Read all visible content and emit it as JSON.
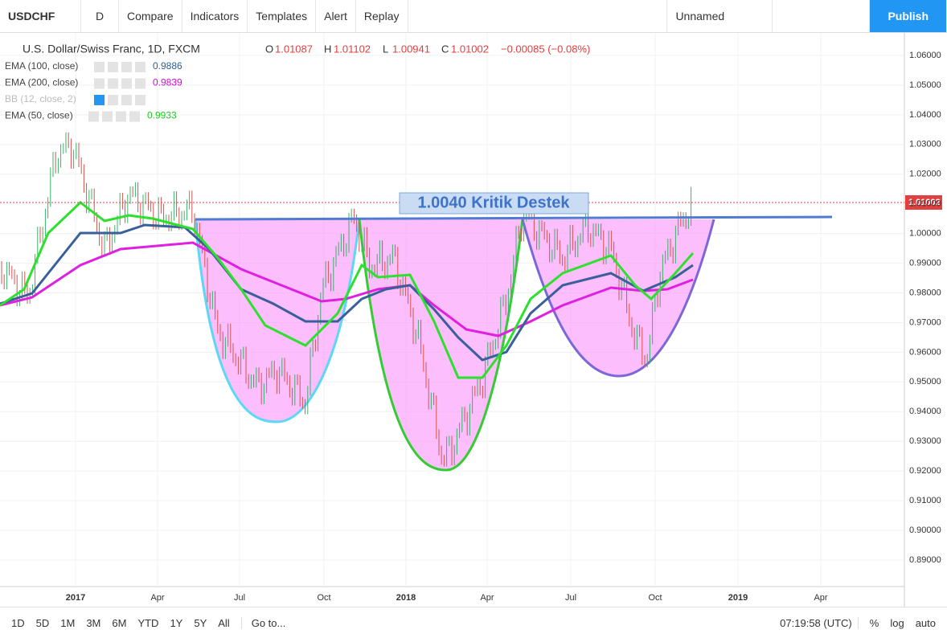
{
  "toolbar": {
    "symbol": "USDCHF",
    "interval": "D",
    "buttons": [
      "Compare",
      "Indicators",
      "Templates",
      "Alert",
      "Replay"
    ],
    "layout_name": "Unnamed",
    "publish": "Publish"
  },
  "legend": {
    "title": "U.S. Dollar/Swiss Franc, 1D, FXCM",
    "ohlc": [
      {
        "key": "O",
        "value": "1.01087"
      },
      {
        "key": "H",
        "value": "1.01102"
      },
      {
        "key": "L",
        "value": "1.00941"
      },
      {
        "key": "C",
        "value": "1.01002"
      }
    ],
    "change": "−0.00085 (−0.08%)",
    "indicators": [
      {
        "name": "EMA (100, close)",
        "value": "0.9886",
        "color": "#2a5f8f"
      },
      {
        "name": "EMA (200, close)",
        "value": "0.9839",
        "color": "#e000e0"
      },
      {
        "name": "BB (12, close, 2)",
        "value": null,
        "color": "#bbbbbb"
      },
      {
        "name": "EMA (50, close)",
        "value": "0.9933",
        "color": "#22cc22"
      }
    ]
  },
  "price_axis": {
    "ticks": [
      "1.06000",
      "1.05000",
      "1.04000",
      "1.03000",
      "1.02000",
      "1.01000",
      "1.00000",
      "0.99000",
      "0.98000",
      "0.97000",
      "0.96000",
      "0.95000",
      "0.94000",
      "0.93000",
      "0.92000",
      "0.91000",
      "0.90000",
      "0.89000"
    ],
    "last_price": "1.01002"
  },
  "time_axis": {
    "labels": [
      "2017",
      "Apr",
      "Jul",
      "Oct",
      "2018",
      "Apr",
      "Jul",
      "Oct",
      "2019",
      "Apr"
    ]
  },
  "annotation": "1.0040 Kritik Destek",
  "bottom_bar": {
    "ranges": [
      "1D",
      "5D",
      "1M",
      "3M",
      "6M",
      "YTD",
      "1Y",
      "5Y",
      "All"
    ],
    "goto": "Go to...",
    "clock": "07:19:58 (UTC)",
    "options": [
      "%",
      "log",
      "auto"
    ]
  }
}
